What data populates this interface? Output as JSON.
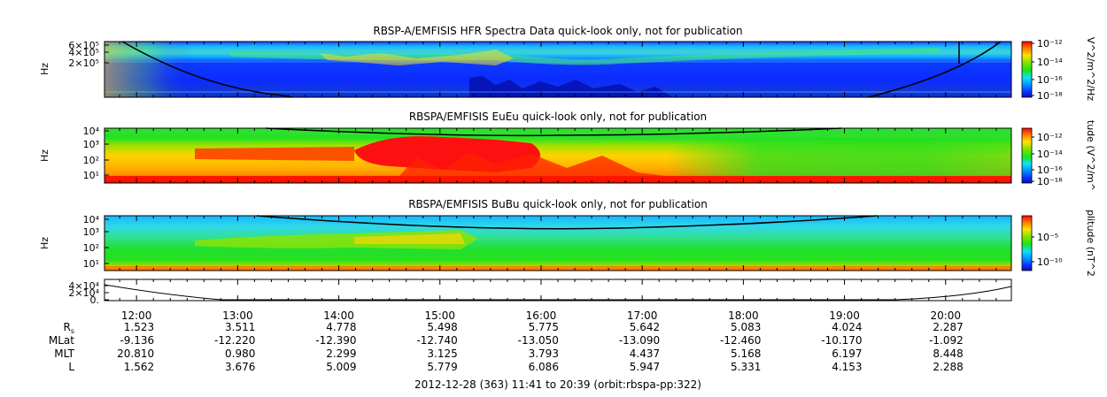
{
  "chart_data": [
    {
      "type": "heatmap",
      "title": "RBSP-A/EMFISIS  HFR Spectra Data quick-look only, not for publication",
      "ylabel": "Hz",
      "ytick_labels": [
        "6×10⁵",
        "4×10⁵",
        "2×10⁵"
      ],
      "colorbar": {
        "label": "V^2/m^2/Hz",
        "tick_labels": [
          "10⁻¹²",
          "10⁻¹⁴",
          "10⁻¹⁶",
          "10⁻¹⁸"
        ]
      }
    },
    {
      "type": "heatmap",
      "title": "RBSPA/EMFISIS  EuEu quick-look only, not for publication",
      "ylabel": "Hz",
      "ytick_labels": [
        "10⁴",
        "10³",
        "10²",
        "10¹"
      ],
      "colorbar": {
        "label": "tude (V^2/m^",
        "tick_labels": [
          "10⁻¹²",
          "10⁻¹⁴",
          "10⁻¹⁶",
          "10⁻¹⁸"
        ]
      }
    },
    {
      "type": "heatmap",
      "title": "RBSPA/EMFISIS  BuBu quick-look only, not for publication",
      "ylabel": "Hz",
      "ytick_labels": [
        "10⁴",
        "10³",
        "10²",
        "10¹"
      ],
      "colorbar": {
        "label": "plitude (nT^2",
        "tick_labels": [
          "10⁻⁵",
          "10⁻¹⁰"
        ]
      }
    },
    {
      "type": "line",
      "ytick_labels": [
        "4×10⁴",
        "2×10⁴",
        "0."
      ],
      "ylim": [
        0,
        40000
      ]
    }
  ],
  "xaxis": {
    "tick_labels": [
      "12:00",
      "13:00",
      "14:00",
      "15:00",
      "16:00",
      "17:00",
      "18:00",
      "19:00",
      "20:00"
    ],
    "ephemeris": [
      {
        "label": "R",
        "subscript": "s",
        "values": [
          "1.523",
          "3.511",
          "4.778",
          "5.498",
          "5.775",
          "5.642",
          "5.083",
          "4.024",
          "2.287"
        ]
      },
      {
        "label": "MLat",
        "values": [
          "-9.136",
          "-12.220",
          "-12.390",
          "-12.740",
          "-13.050",
          "-13.090",
          "-12.460",
          "-10.170",
          "-1.092"
        ]
      },
      {
        "label": "MLT",
        "values": [
          "20.810",
          "0.980",
          "2.299",
          "3.125",
          "3.793",
          "4.437",
          "5.168",
          "6.197",
          "8.448"
        ]
      },
      {
        "label": "L",
        "values": [
          "1.562",
          "3.676",
          "5.009",
          "5.779",
          "6.086",
          "5.947",
          "5.331",
          "4.153",
          "2.288"
        ]
      }
    ],
    "footer": "2012-12-28 (363) 11:41 to 20:39 (orbit:rbspa-pp:322)"
  }
}
